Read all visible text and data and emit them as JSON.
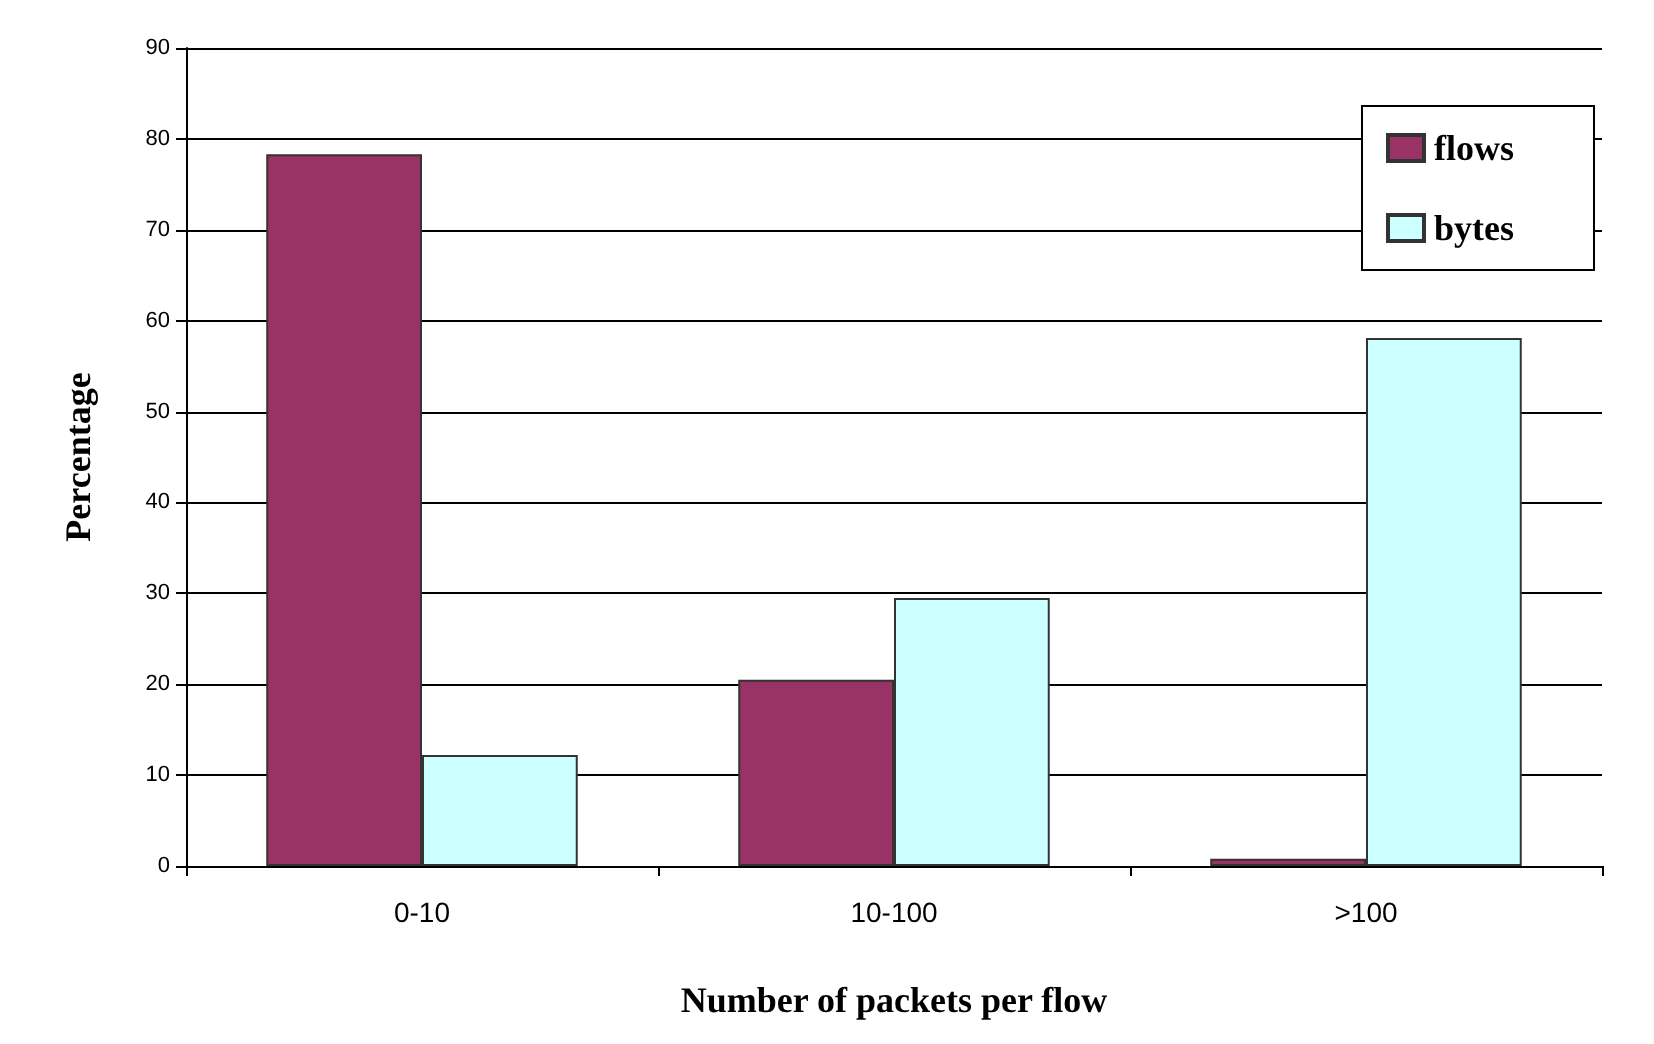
{
  "chart_data": {
    "type": "bar",
    "xlabel": "Number of packets per flow",
    "ylabel": "Percentage",
    "categories": [
      "0-10",
      "10-100",
      ">100"
    ],
    "series": [
      {
        "name": "flows",
        "color": "#993366",
        "values": [
          78.3,
          20.5,
          0.8
        ]
      },
      {
        "name": "bytes",
        "color": "#ccffff",
        "values": [
          12.2,
          29.5,
          58.1
        ]
      }
    ],
    "ylim": [
      0,
      90
    ],
    "yticks": [
      0,
      10,
      20,
      30,
      40,
      50,
      60,
      70,
      80,
      90
    ],
    "grid": "y",
    "legend": "top right"
  }
}
